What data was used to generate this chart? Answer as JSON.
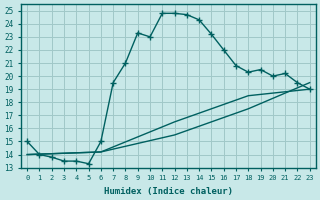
{
  "xlabel": "Humidex (Indice chaleur)",
  "bg_color": "#c8e8e8",
  "grid_color": "#a0c8c8",
  "line_color": "#006060",
  "xlim": [
    -0.5,
    23.5
  ],
  "ylim": [
    13,
    25.5
  ],
  "xticks": [
    0,
    1,
    2,
    3,
    4,
    5,
    6,
    7,
    8,
    9,
    10,
    11,
    12,
    13,
    14,
    15,
    16,
    17,
    18,
    19,
    20,
    21,
    22,
    23
  ],
  "yticks": [
    13,
    14,
    15,
    16,
    17,
    18,
    19,
    20,
    21,
    22,
    23,
    24,
    25
  ],
  "line1_x": [
    0,
    1,
    2,
    3,
    4,
    5,
    6,
    7,
    8,
    9,
    10,
    11,
    12,
    13,
    14,
    15,
    16,
    17,
    18,
    19,
    20,
    21,
    22,
    23
  ],
  "line1_y": [
    15.0,
    14.0,
    13.8,
    13.5,
    13.5,
    13.3,
    15.0,
    19.5,
    21.0,
    23.3,
    23.0,
    24.8,
    24.8,
    24.7,
    24.3,
    23.2,
    22.0,
    20.8,
    20.3,
    20.5,
    20.0,
    20.2,
    19.5,
    19.0
  ],
  "line2_x": [
    0,
    6,
    12,
    18,
    23
  ],
  "line2_y": [
    14.0,
    14.2,
    16.5,
    18.5,
    19.0
  ],
  "line3_x": [
    0,
    6,
    12,
    18,
    23
  ],
  "line3_y": [
    14.0,
    14.2,
    15.5,
    17.5,
    19.5
  ],
  "marker": "+"
}
